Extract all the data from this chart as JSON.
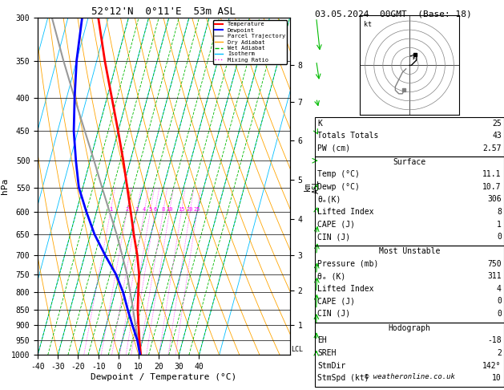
{
  "title_left": "52°12'N  0°11'E  53m ASL",
  "title_right": "03.05.2024  00GMT  (Base: 18)",
  "xlabel": "Dewpoint / Temperature (°C)",
  "ylabel_left": "hPa",
  "background": "#ffffff",
  "isotherm_color": "#00bfff",
  "dry_adiabat_color": "#ffa500",
  "wet_adiabat_color": "#00bb00",
  "mixing_ratio_color": "#ff00ff",
  "temperature_color": "#ff0000",
  "dewpoint_color": "#0000ff",
  "parcel_color": "#999999",
  "wind_barb_color": "#00bb00",
  "lcl_label": "LCL",
  "pressure_levels": [
    300,
    350,
    400,
    450,
    500,
    550,
    600,
    650,
    700,
    750,
    800,
    850,
    900,
    950,
    1000
  ],
  "km_ticks": {
    "1": 900,
    "2": 795,
    "3": 700,
    "4": 615,
    "5": 535,
    "6": 465,
    "7": 405,
    "8": 355
  },
  "mixing_labels": [
    1,
    2,
    3,
    4,
    5,
    6,
    8,
    10,
    15,
    20,
    25
  ],
  "stats_table": {
    "K": 25,
    "Totals_Totals": 43,
    "PW_cm": 2.57,
    "Surface_Temp": 11.1,
    "Surface_Dewp": 10.7,
    "Surface_theta_e": 306,
    "Surface_LI": 8,
    "Surface_CAPE": 1,
    "Surface_CIN": 0,
    "MU_Pressure": 750,
    "MU_theta_e": 311,
    "MU_LI": 4,
    "MU_CAPE": 0,
    "MU_CIN": 0,
    "EH": -18,
    "SREH": 2,
    "StmDir": 142,
    "StmSpd": 10
  },
  "temp_profile": {
    "pressure": [
      1000,
      950,
      900,
      850,
      800,
      750,
      700,
      650,
      600,
      550,
      500,
      450,
      400,
      350,
      300
    ],
    "temp": [
      11.1,
      8.5,
      6.0,
      3.5,
      1.5,
      -0.5,
      -4.0,
      -8.5,
      -13.0,
      -18.0,
      -23.5,
      -30.0,
      -37.5,
      -46.0,
      -55.0
    ]
  },
  "dewp_profile": {
    "pressure": [
      1000,
      950,
      900,
      850,
      800,
      750,
      700,
      650,
      600,
      550,
      500,
      450,
      400,
      350,
      300
    ],
    "temp": [
      10.7,
      7.5,
      3.0,
      -1.5,
      -6.0,
      -12.0,
      -20.0,
      -28.0,
      -35.0,
      -42.0,
      -47.0,
      -52.0,
      -56.0,
      -60.0,
      -63.0
    ]
  },
  "parcel_profile": {
    "pressure": [
      1000,
      950,
      900,
      850,
      800,
      750,
      700,
      650,
      600,
      550,
      500,
      450,
      400,
      350,
      300
    ],
    "temp": [
      11.1,
      7.8,
      4.5,
      1.2,
      -2.5,
      -6.5,
      -11.5,
      -17.0,
      -23.5,
      -30.5,
      -38.0,
      -46.5,
      -56.0,
      -66.5,
      -78.0
    ]
  },
  "wind_pressures": [
    1000,
    950,
    900,
    850,
    800,
    750,
    700,
    650,
    600,
    550,
    500,
    450,
    400,
    350,
    300
  ],
  "wind_u": [
    1,
    1,
    1,
    2,
    3,
    3,
    4,
    5,
    5,
    5,
    5,
    6,
    8,
    10,
    12
  ],
  "wind_v": [
    -2,
    -3,
    -4,
    -5,
    -5,
    -4,
    -4,
    -3,
    -2,
    -1,
    0,
    1,
    3,
    6,
    10
  ]
}
